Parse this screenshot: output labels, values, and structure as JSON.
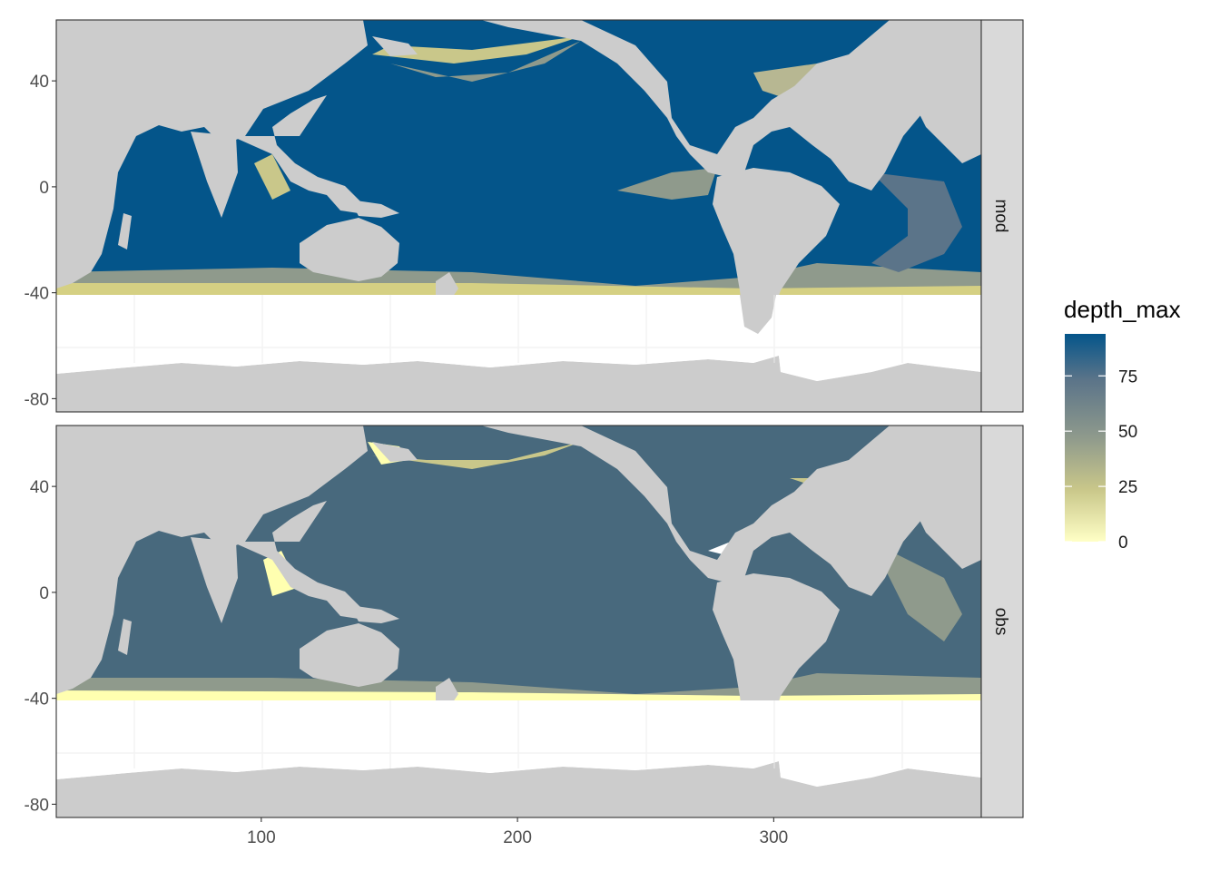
{
  "chart_data": {
    "type": "heatmap",
    "subtitle_kind": "faceted ocean map",
    "facets": [
      "mod",
      "obs"
    ],
    "x_ticks": [
      100,
      200,
      300
    ],
    "y_ticks": [
      40,
      0,
      -40,
      -80
    ],
    "xlim": [
      20,
      381
    ],
    "ylim": [
      -85,
      63
    ],
    "legend": {
      "title": "depth_max",
      "ticks": [
        0,
        25,
        50,
        75
      ],
      "range": [
        0,
        94
      ],
      "placement": "right",
      "colors": [
        "#ffffc6",
        "#c9c78a",
        "#8f9a8c",
        "#5b7489",
        "#04558a"
      ]
    },
    "land_color": "#cccccc",
    "ocean_na_color": "#ffffff",
    "panels": [
      {
        "facet": "mod",
        "dominant_value": 94,
        "note_colors": [
          "#04558a",
          "#d5d083"
        ]
      },
      {
        "facet": "obs",
        "dominant_value": 82,
        "note_colors": [
          "#48697d",
          "#ffffb0"
        ]
      }
    ]
  }
}
